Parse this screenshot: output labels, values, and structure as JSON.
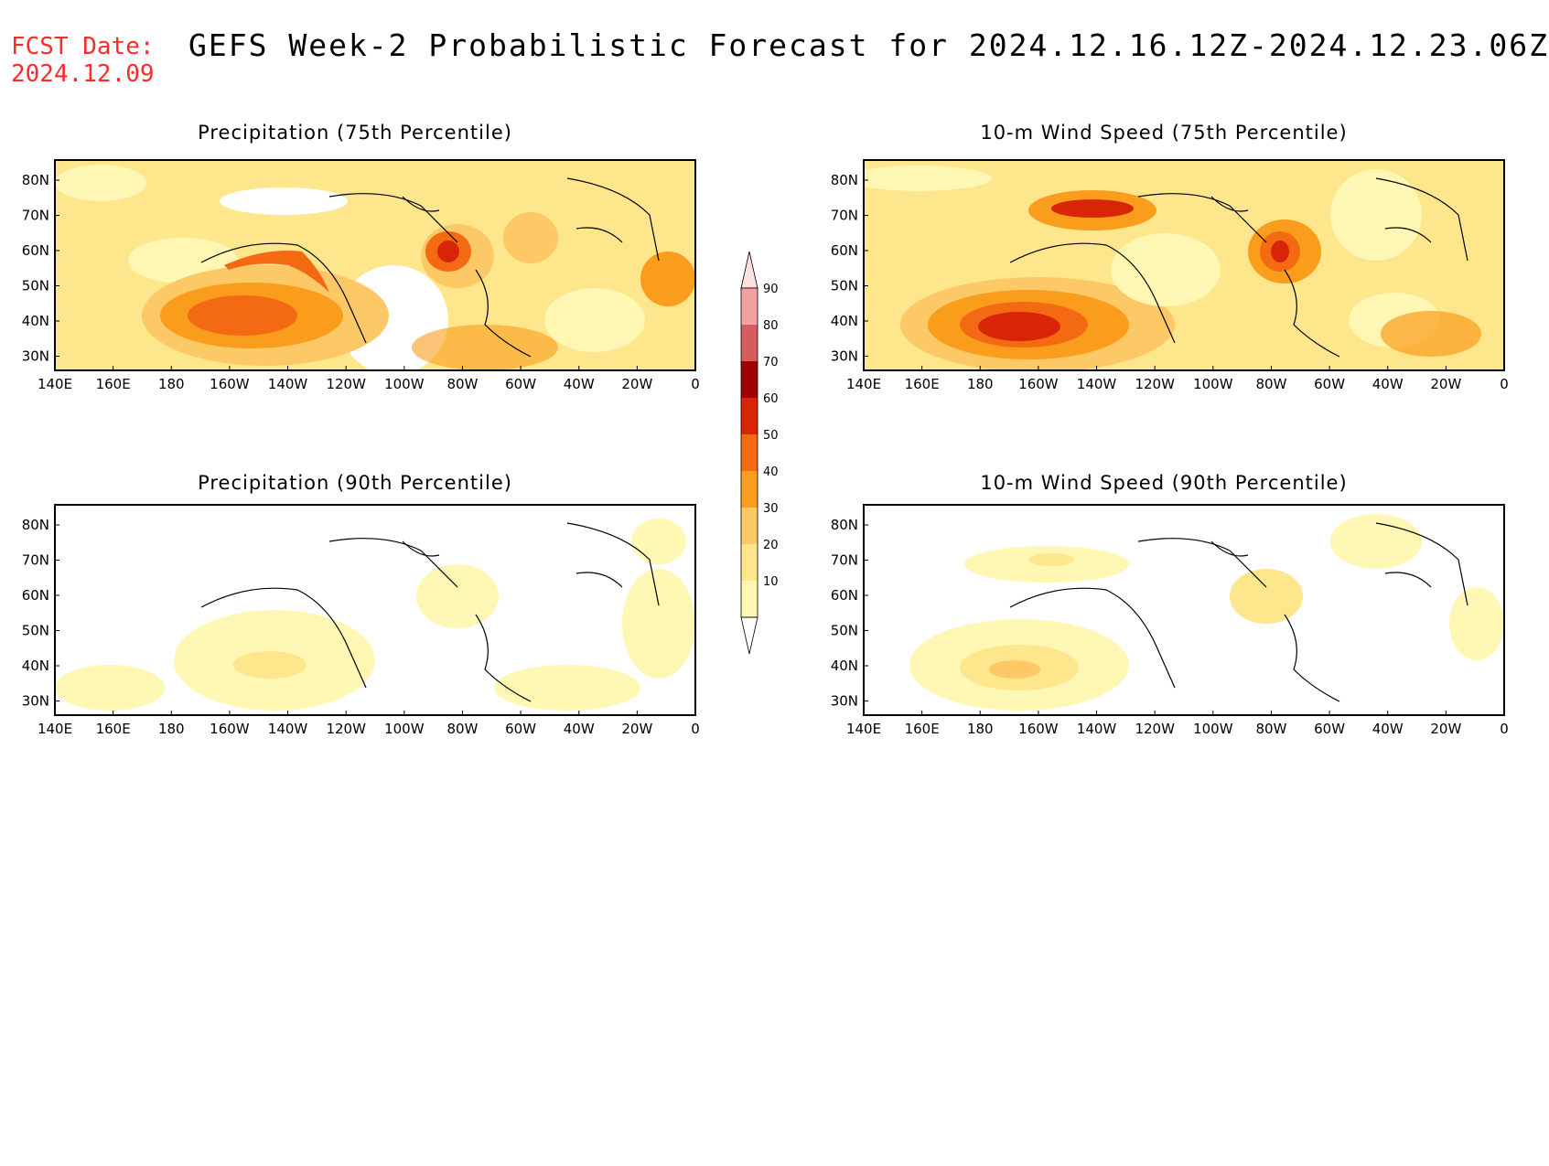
{
  "header": {
    "fcst_label": "FCST Date:",
    "fcst_date": "2024.12.09",
    "title": "GEFS Week-2 Probabilistic Forecast for 2024.12.16.12Z-2024.12.23.06Z"
  },
  "axes": {
    "lat_ticks": [
      "80N",
      "70N",
      "60N",
      "50N",
      "40N",
      "30N"
    ],
    "lon_ticks": [
      "140E",
      "160E",
      "180",
      "160W",
      "140W",
      "120W",
      "100W",
      "80W",
      "60W",
      "40W",
      "20W",
      "0"
    ]
  },
  "panels": [
    {
      "id": "precip75",
      "title": "Precipitation (75th Percentile)"
    },
    {
      "id": "wind75",
      "title": "10-m Wind Speed (75th Percentile)"
    },
    {
      "id": "precip90",
      "title": "Precipitation (90th Percentile)"
    },
    {
      "id": "wind90",
      "title": "10-m Wind Speed (90th Percentile)"
    }
  ],
  "colorbar": {
    "labels": [
      "10",
      "20",
      "30",
      "40",
      "50",
      "60",
      "70",
      "80",
      "90"
    ],
    "colors": [
      "#fff7b3",
      "#fee68c",
      "#fdc866",
      "#fa9c1c",
      "#f46a12",
      "#d92507",
      "#a00000",
      "#d45d5d",
      "#f2a2a2"
    ]
  }
}
